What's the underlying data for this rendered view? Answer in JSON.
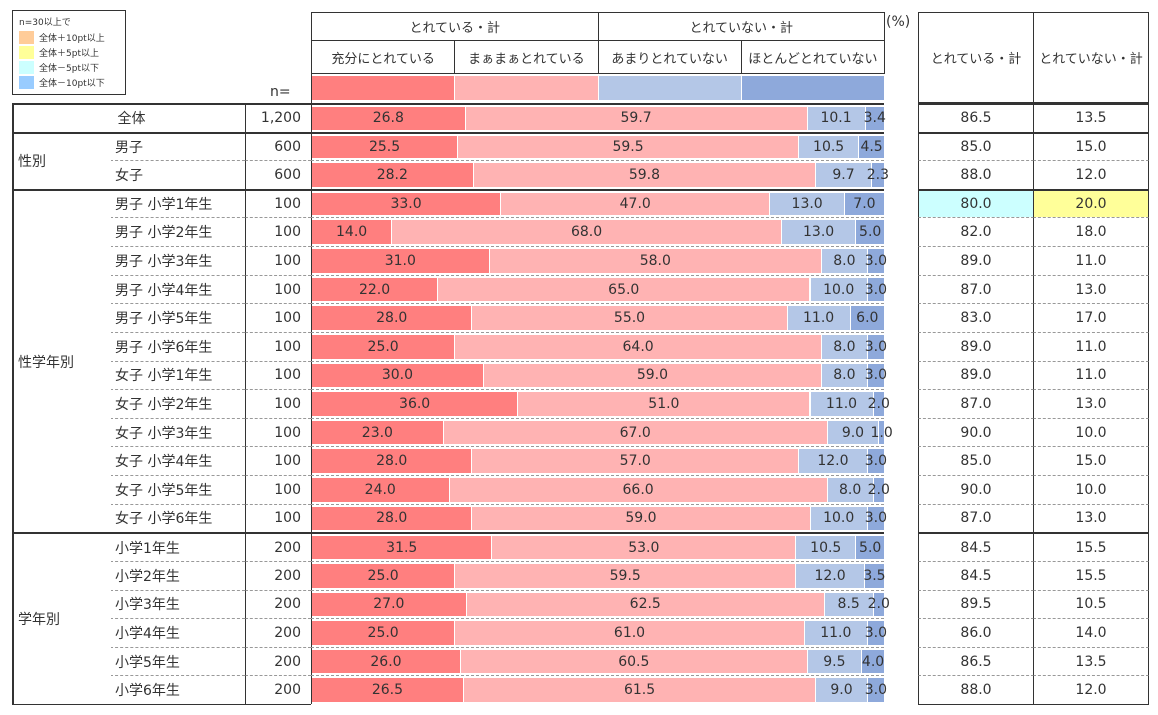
{
  "legend": {
    "title": "n=30以上で",
    "items": [
      {
        "label": "全体＋10pt以上",
        "color": "#FFCC99"
      },
      {
        "label": "全体＋5pt以上",
        "color": "#FFFF99"
      },
      {
        "label": "全体－5pt以下",
        "color": "#CCFFFF"
      },
      {
        "label": "全体－10pt以下",
        "color": "#99CCFF"
      }
    ]
  },
  "n_label": "n=",
  "unit": "(%)",
  "chart_data": {
    "type": "bar",
    "stacked": true,
    "orientation": "horizontal",
    "xlim": [
      0,
      100
    ],
    "groups": [
      {
        "label": "とれている・計",
        "series": [
          0,
          1
        ]
      },
      {
        "label": "とれていない・計",
        "series": [
          2,
          3
        ]
      }
    ],
    "series": [
      {
        "name": "充分にとれている",
        "color": "#FF7F7F"
      },
      {
        "name": "まぁまぁとれている",
        "color": "#FFB3B3"
      },
      {
        "name": "あまりとれていない",
        "color": "#B4C7E7"
      },
      {
        "name": "ほとんどとれていない",
        "color": "#8EA9DB"
      }
    ],
    "totals_headers": [
      "とれている・計",
      "とれていない・計"
    ],
    "rows": [
      {
        "group": "",
        "label": "全体",
        "n": "1,200",
        "values": [
          26.8,
          59.7,
          10.1,
          3.4
        ],
        "totals": [
          "86.5",
          "13.5"
        ]
      },
      {
        "group": "性別",
        "label": "男子",
        "n": "600",
        "values": [
          25.5,
          59.5,
          10.5,
          4.5
        ],
        "totals": [
          "85.0",
          "15.0"
        ]
      },
      {
        "group": "性別",
        "label": "女子",
        "n": "600",
        "values": [
          28.2,
          59.8,
          9.7,
          2.3
        ],
        "totals": [
          "88.0",
          "12.0"
        ]
      },
      {
        "group": "性学年別",
        "label": "男子 小学1年生",
        "n": "100",
        "values": [
          33.0,
          47.0,
          13.0,
          7.0
        ],
        "totals": [
          "80.0",
          "20.0"
        ],
        "highlight": [
          "#CCFFFF",
          "#FFFF99"
        ]
      },
      {
        "group": "性学年別",
        "label": "男子 小学2年生",
        "n": "100",
        "values": [
          14.0,
          68.0,
          13.0,
          5.0
        ],
        "totals": [
          "82.0",
          "18.0"
        ]
      },
      {
        "group": "性学年別",
        "label": "男子 小学3年生",
        "n": "100",
        "values": [
          31.0,
          58.0,
          8.0,
          3.0
        ],
        "totals": [
          "89.0",
          "11.0"
        ]
      },
      {
        "group": "性学年別",
        "label": "男子 小学4年生",
        "n": "100",
        "values": [
          22.0,
          65.0,
          10.0,
          3.0
        ],
        "totals": [
          "87.0",
          "13.0"
        ]
      },
      {
        "group": "性学年別",
        "label": "男子 小学5年生",
        "n": "100",
        "values": [
          28.0,
          55.0,
          11.0,
          6.0
        ],
        "totals": [
          "83.0",
          "17.0"
        ]
      },
      {
        "group": "性学年別",
        "label": "男子 小学6年生",
        "n": "100",
        "values": [
          25.0,
          64.0,
          8.0,
          3.0
        ],
        "totals": [
          "89.0",
          "11.0"
        ]
      },
      {
        "group": "性学年別",
        "label": "女子 小学1年生",
        "n": "100",
        "values": [
          30.0,
          59.0,
          8.0,
          3.0
        ],
        "totals": [
          "89.0",
          "11.0"
        ]
      },
      {
        "group": "性学年別",
        "label": "女子 小学2年生",
        "n": "100",
        "values": [
          36.0,
          51.0,
          11.0,
          2.0
        ],
        "totals": [
          "87.0",
          "13.0"
        ]
      },
      {
        "group": "性学年別",
        "label": "女子 小学3年生",
        "n": "100",
        "values": [
          23.0,
          67.0,
          9.0,
          1.0
        ],
        "totals": [
          "90.0",
          "10.0"
        ]
      },
      {
        "group": "性学年別",
        "label": "女子 小学4年生",
        "n": "100",
        "values": [
          28.0,
          57.0,
          12.0,
          3.0
        ],
        "totals": [
          "85.0",
          "15.0"
        ]
      },
      {
        "group": "性学年別",
        "label": "女子 小学5年生",
        "n": "100",
        "values": [
          24.0,
          66.0,
          8.0,
          2.0
        ],
        "totals": [
          "90.0",
          "10.0"
        ]
      },
      {
        "group": "性学年別",
        "label": "女子 小学6年生",
        "n": "100",
        "values": [
          28.0,
          59.0,
          10.0,
          3.0
        ],
        "totals": [
          "87.0",
          "13.0"
        ]
      },
      {
        "group": "学年別",
        "label": "小学1年生",
        "n": "200",
        "values": [
          31.5,
          53.0,
          10.5,
          5.0
        ],
        "totals": [
          "84.5",
          "15.5"
        ]
      },
      {
        "group": "学年別",
        "label": "小学2年生",
        "n": "200",
        "values": [
          25.0,
          59.5,
          12.0,
          3.5
        ],
        "totals": [
          "84.5",
          "15.5"
        ]
      },
      {
        "group": "学年別",
        "label": "小学3年生",
        "n": "200",
        "values": [
          27.0,
          62.5,
          8.5,
          2.0
        ],
        "totals": [
          "89.5",
          "10.5"
        ]
      },
      {
        "group": "学年別",
        "label": "小学4年生",
        "n": "200",
        "values": [
          25.0,
          61.0,
          11.0,
          3.0
        ],
        "totals": [
          "86.0",
          "14.0"
        ]
      },
      {
        "group": "学年別",
        "label": "小学5年生",
        "n": "200",
        "values": [
          26.0,
          60.5,
          9.5,
          4.0
        ],
        "totals": [
          "86.5",
          "13.5"
        ]
      },
      {
        "group": "学年別",
        "label": "小学6年生",
        "n": "200",
        "values": [
          26.5,
          61.5,
          9.0,
          3.0
        ],
        "totals": [
          "88.0",
          "12.0"
        ]
      }
    ]
  }
}
